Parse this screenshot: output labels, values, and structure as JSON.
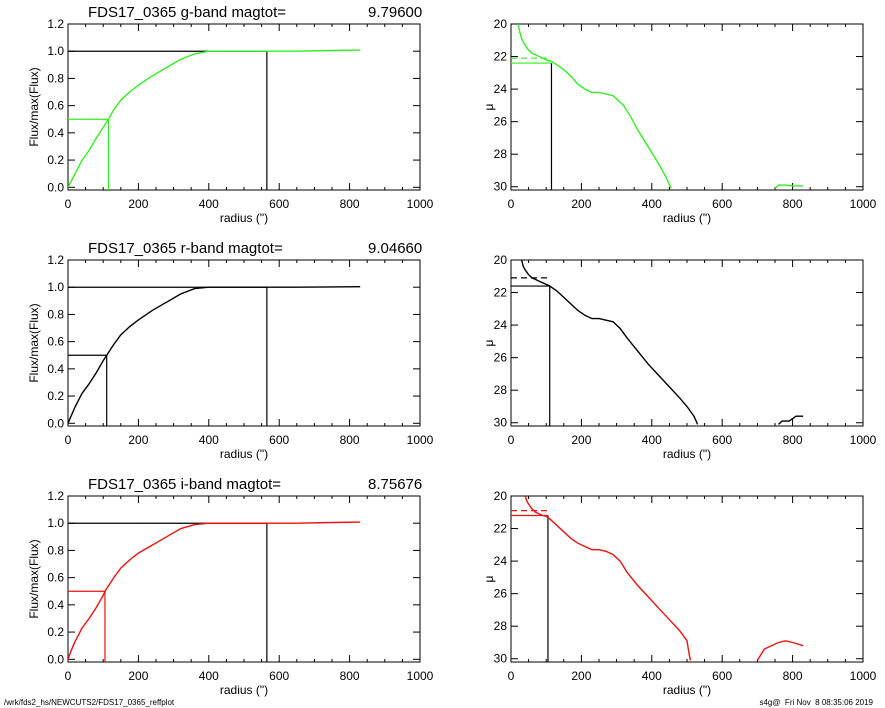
{
  "colors": {
    "g": "#33ee22",
    "r": "#000000",
    "i": "#ee1111",
    "axis": "#000000"
  },
  "footer": {
    "left": "/wrk/fds2_hs/NEWCUTS2/FDS17_0365_reffplot",
    "right": "s4g@  Fri Nov  8 08:35:06 2019"
  },
  "chart_data": [
    {
      "type": "line",
      "title": "FDS17_0365 g-band  magtot=",
      "title_value": "9.79600",
      "xlabel": "radius (\")",
      "ylabel": "Flux/max(Flux)",
      "xlim": [
        0,
        1000
      ],
      "ylim": [
        -0.02,
        1.2
      ],
      "xticks": [
        "0",
        "200",
        "400",
        "600",
        "800",
        "1000"
      ],
      "yticks": [
        "0.0",
        "0.2",
        "0.4",
        "0.6",
        "0.8",
        "1.0",
        "1.2"
      ],
      "color_key": "g",
      "series": [
        {
          "x": [
            0,
            10,
            20,
            30,
            40,
            60,
            80,
            100,
            115,
            130,
            150,
            175,
            200,
            240,
            280,
            320,
            360,
            400,
            450,
            500,
            560,
            650,
            750,
            830
          ],
          "y": [
            0,
            0.05,
            0.1,
            0.15,
            0.2,
            0.27,
            0.36,
            0.44,
            0.5,
            0.57,
            0.64,
            0.7,
            0.75,
            0.82,
            0.88,
            0.94,
            0.98,
            1.0,
            1.0,
            1.0,
            1.0,
            1.0,
            1.005,
            1.008
          ]
        }
      ],
      "refs": {
        "half_radius": 115,
        "half_level": 0.5,
        "total_radius": 565,
        "total_level": 1.0
      }
    },
    {
      "type": "line",
      "xlabel": "radius (\")",
      "ylabel": "μ",
      "xlim": [
        0,
        1000
      ],
      "ylim": [
        30.2,
        20
      ],
      "xticks": [
        "0",
        "200",
        "400",
        "600",
        "800",
        "1000"
      ],
      "yticks": [
        "20",
        "22",
        "24",
        "26",
        "28",
        "30"
      ],
      "color_key": "g",
      "series": [
        {
          "x": [
            20,
            25,
            30,
            40,
            50,
            60,
            70,
            80,
            90,
            100,
            115,
            130,
            150,
            170,
            190,
            210,
            230,
            250,
            270,
            290,
            300,
            310,
            320,
            340,
            360,
            380,
            400,
            420,
            440,
            455
          ],
          "y": [
            20,
            20.5,
            20.9,
            21.3,
            21.6,
            21.8,
            21.9,
            22.0,
            22.1,
            22.2,
            22.3,
            22.5,
            22.8,
            23.2,
            23.7,
            24.0,
            24.2,
            24.2,
            24.3,
            24.4,
            24.6,
            24.8,
            25.0,
            25.7,
            26.5,
            27.2,
            27.9,
            28.6,
            29.4,
            30.1
          ]
        },
        {
          "x": [
            750,
            760,
            780,
            800,
            830
          ],
          "y": [
            30.1,
            29.9,
            29.9,
            29.95,
            29.95
          ]
        }
      ],
      "refs": {
        "effective_radius": 115,
        "effective_mu": 22.4,
        "dashed_mu": 22.1
      }
    },
    {
      "type": "line",
      "title": "FDS17_0365 r-band  magtot=",
      "title_value": "9.04660",
      "xlabel": "radius (\")",
      "ylabel": "Flux/max(Flux)",
      "xlim": [
        0,
        1000
      ],
      "ylim": [
        -0.02,
        1.2
      ],
      "xticks": [
        "0",
        "200",
        "400",
        "600",
        "800",
        "1000"
      ],
      "yticks": [
        "0.0",
        "0.2",
        "0.4",
        "0.6",
        "0.8",
        "1.0",
        "1.2"
      ],
      "color_key": "r",
      "series": [
        {
          "x": [
            0,
            10,
            20,
            30,
            40,
            60,
            80,
            100,
            110,
            130,
            150,
            175,
            200,
            240,
            280,
            320,
            360,
            400,
            450,
            500,
            560,
            650,
            750,
            830
          ],
          "y": [
            0,
            0.06,
            0.12,
            0.17,
            0.22,
            0.29,
            0.37,
            0.46,
            0.5,
            0.58,
            0.65,
            0.71,
            0.76,
            0.83,
            0.89,
            0.95,
            0.99,
            1.0,
            1.0,
            1.0,
            1.0,
            1.0,
            1.002,
            1.004
          ]
        }
      ],
      "refs": {
        "half_radius": 110,
        "half_level": 0.5,
        "total_radius": 565,
        "total_level": 1.0
      }
    },
    {
      "type": "line",
      "xlabel": "radius (\")",
      "ylabel": "μ",
      "xlim": [
        0,
        1000
      ],
      "ylim": [
        30.2,
        20
      ],
      "xticks": [
        "0",
        "200",
        "400",
        "600",
        "800",
        "1000"
      ],
      "yticks": [
        "20",
        "22",
        "24",
        "26",
        "28",
        "30"
      ],
      "color_key": "r",
      "series": [
        {
          "x": [
            30,
            35,
            40,
            50,
            60,
            70,
            80,
            90,
            100,
            110,
            130,
            150,
            170,
            190,
            210,
            230,
            250,
            270,
            290,
            300,
            310,
            330,
            360,
            390,
            420,
            450,
            480,
            500,
            520,
            530
          ],
          "y": [
            20,
            20.4,
            20.6,
            20.9,
            21.1,
            21.2,
            21.3,
            21.4,
            21.5,
            21.6,
            21.9,
            22.3,
            22.7,
            23.1,
            23.4,
            23.6,
            23.6,
            23.7,
            23.8,
            24.0,
            24.2,
            24.8,
            25.6,
            26.4,
            27.1,
            27.8,
            28.5,
            29.0,
            29.6,
            30.1
          ]
        },
        {
          "x": [
            760,
            770,
            790,
            810,
            830
          ],
          "y": [
            30.1,
            29.9,
            29.9,
            29.6,
            29.6
          ]
        }
      ],
      "refs": {
        "effective_radius": 110,
        "effective_mu": 21.6,
        "dashed_mu": 21.1
      }
    },
    {
      "type": "line",
      "title": "FDS17_0365 i-band  magtot=",
      "title_value": "8.75676",
      "xlabel": "radius (\")",
      "ylabel": "Flux/max(Flux)",
      "xlim": [
        0,
        1000
      ],
      "ylim": [
        -0.02,
        1.2
      ],
      "xticks": [
        "0",
        "200",
        "400",
        "600",
        "800",
        "1000"
      ],
      "yticks": [
        "0.0",
        "0.2",
        "0.4",
        "0.6",
        "0.8",
        "1.0",
        "1.2"
      ],
      "color_key": "i",
      "series": [
        {
          "x": [
            0,
            10,
            20,
            30,
            40,
            60,
            80,
            100,
            105,
            130,
            150,
            175,
            200,
            240,
            280,
            320,
            360,
            400,
            450,
            500,
            560,
            650,
            750,
            830
          ],
          "y": [
            0,
            0.07,
            0.13,
            0.18,
            0.23,
            0.3,
            0.38,
            0.47,
            0.5,
            0.6,
            0.67,
            0.73,
            0.78,
            0.84,
            0.9,
            0.96,
            0.99,
            1.0,
            1.0,
            1.0,
            1.0,
            1.0,
            1.005,
            1.008
          ]
        }
      ],
      "refs": {
        "half_radius": 105,
        "half_level": 0.5,
        "total_radius": 565,
        "total_level": 1.0
      }
    },
    {
      "type": "line",
      "xlabel": "radius (\")",
      "ylabel": "μ",
      "xlim": [
        0,
        1000
      ],
      "ylim": [
        30.2,
        20
      ],
      "xticks": [
        "0",
        "200",
        "400",
        "600",
        "800",
        "1000"
      ],
      "yticks": [
        "20",
        "22",
        "24",
        "26",
        "28",
        "30"
      ],
      "color_key": "i",
      "series": [
        {
          "x": [
            40,
            45,
            50,
            60,
            70,
            80,
            90,
            100,
            110,
            130,
            150,
            170,
            190,
            210,
            230,
            250,
            270,
            290,
            300,
            310,
            330,
            360,
            390,
            420,
            450,
            480,
            500,
            505,
            510
          ],
          "y": [
            20,
            20.3,
            20.5,
            20.8,
            21.0,
            21.1,
            21.2,
            21.25,
            21.4,
            21.8,
            22.2,
            22.6,
            22.9,
            23.1,
            23.3,
            23.3,
            23.4,
            23.6,
            23.8,
            24.0,
            24.7,
            25.5,
            26.2,
            26.9,
            27.6,
            28.3,
            28.9,
            29.6,
            30.1
          ]
        },
        {
          "x": [
            700,
            720,
            740,
            760,
            780,
            800,
            830
          ],
          "y": [
            30.1,
            29.4,
            29.2,
            29.0,
            28.9,
            29.0,
            29.2
          ]
        }
      ],
      "refs": {
        "effective_radius": 105,
        "effective_mu": 21.2,
        "dashed_mu": 20.9
      }
    }
  ]
}
